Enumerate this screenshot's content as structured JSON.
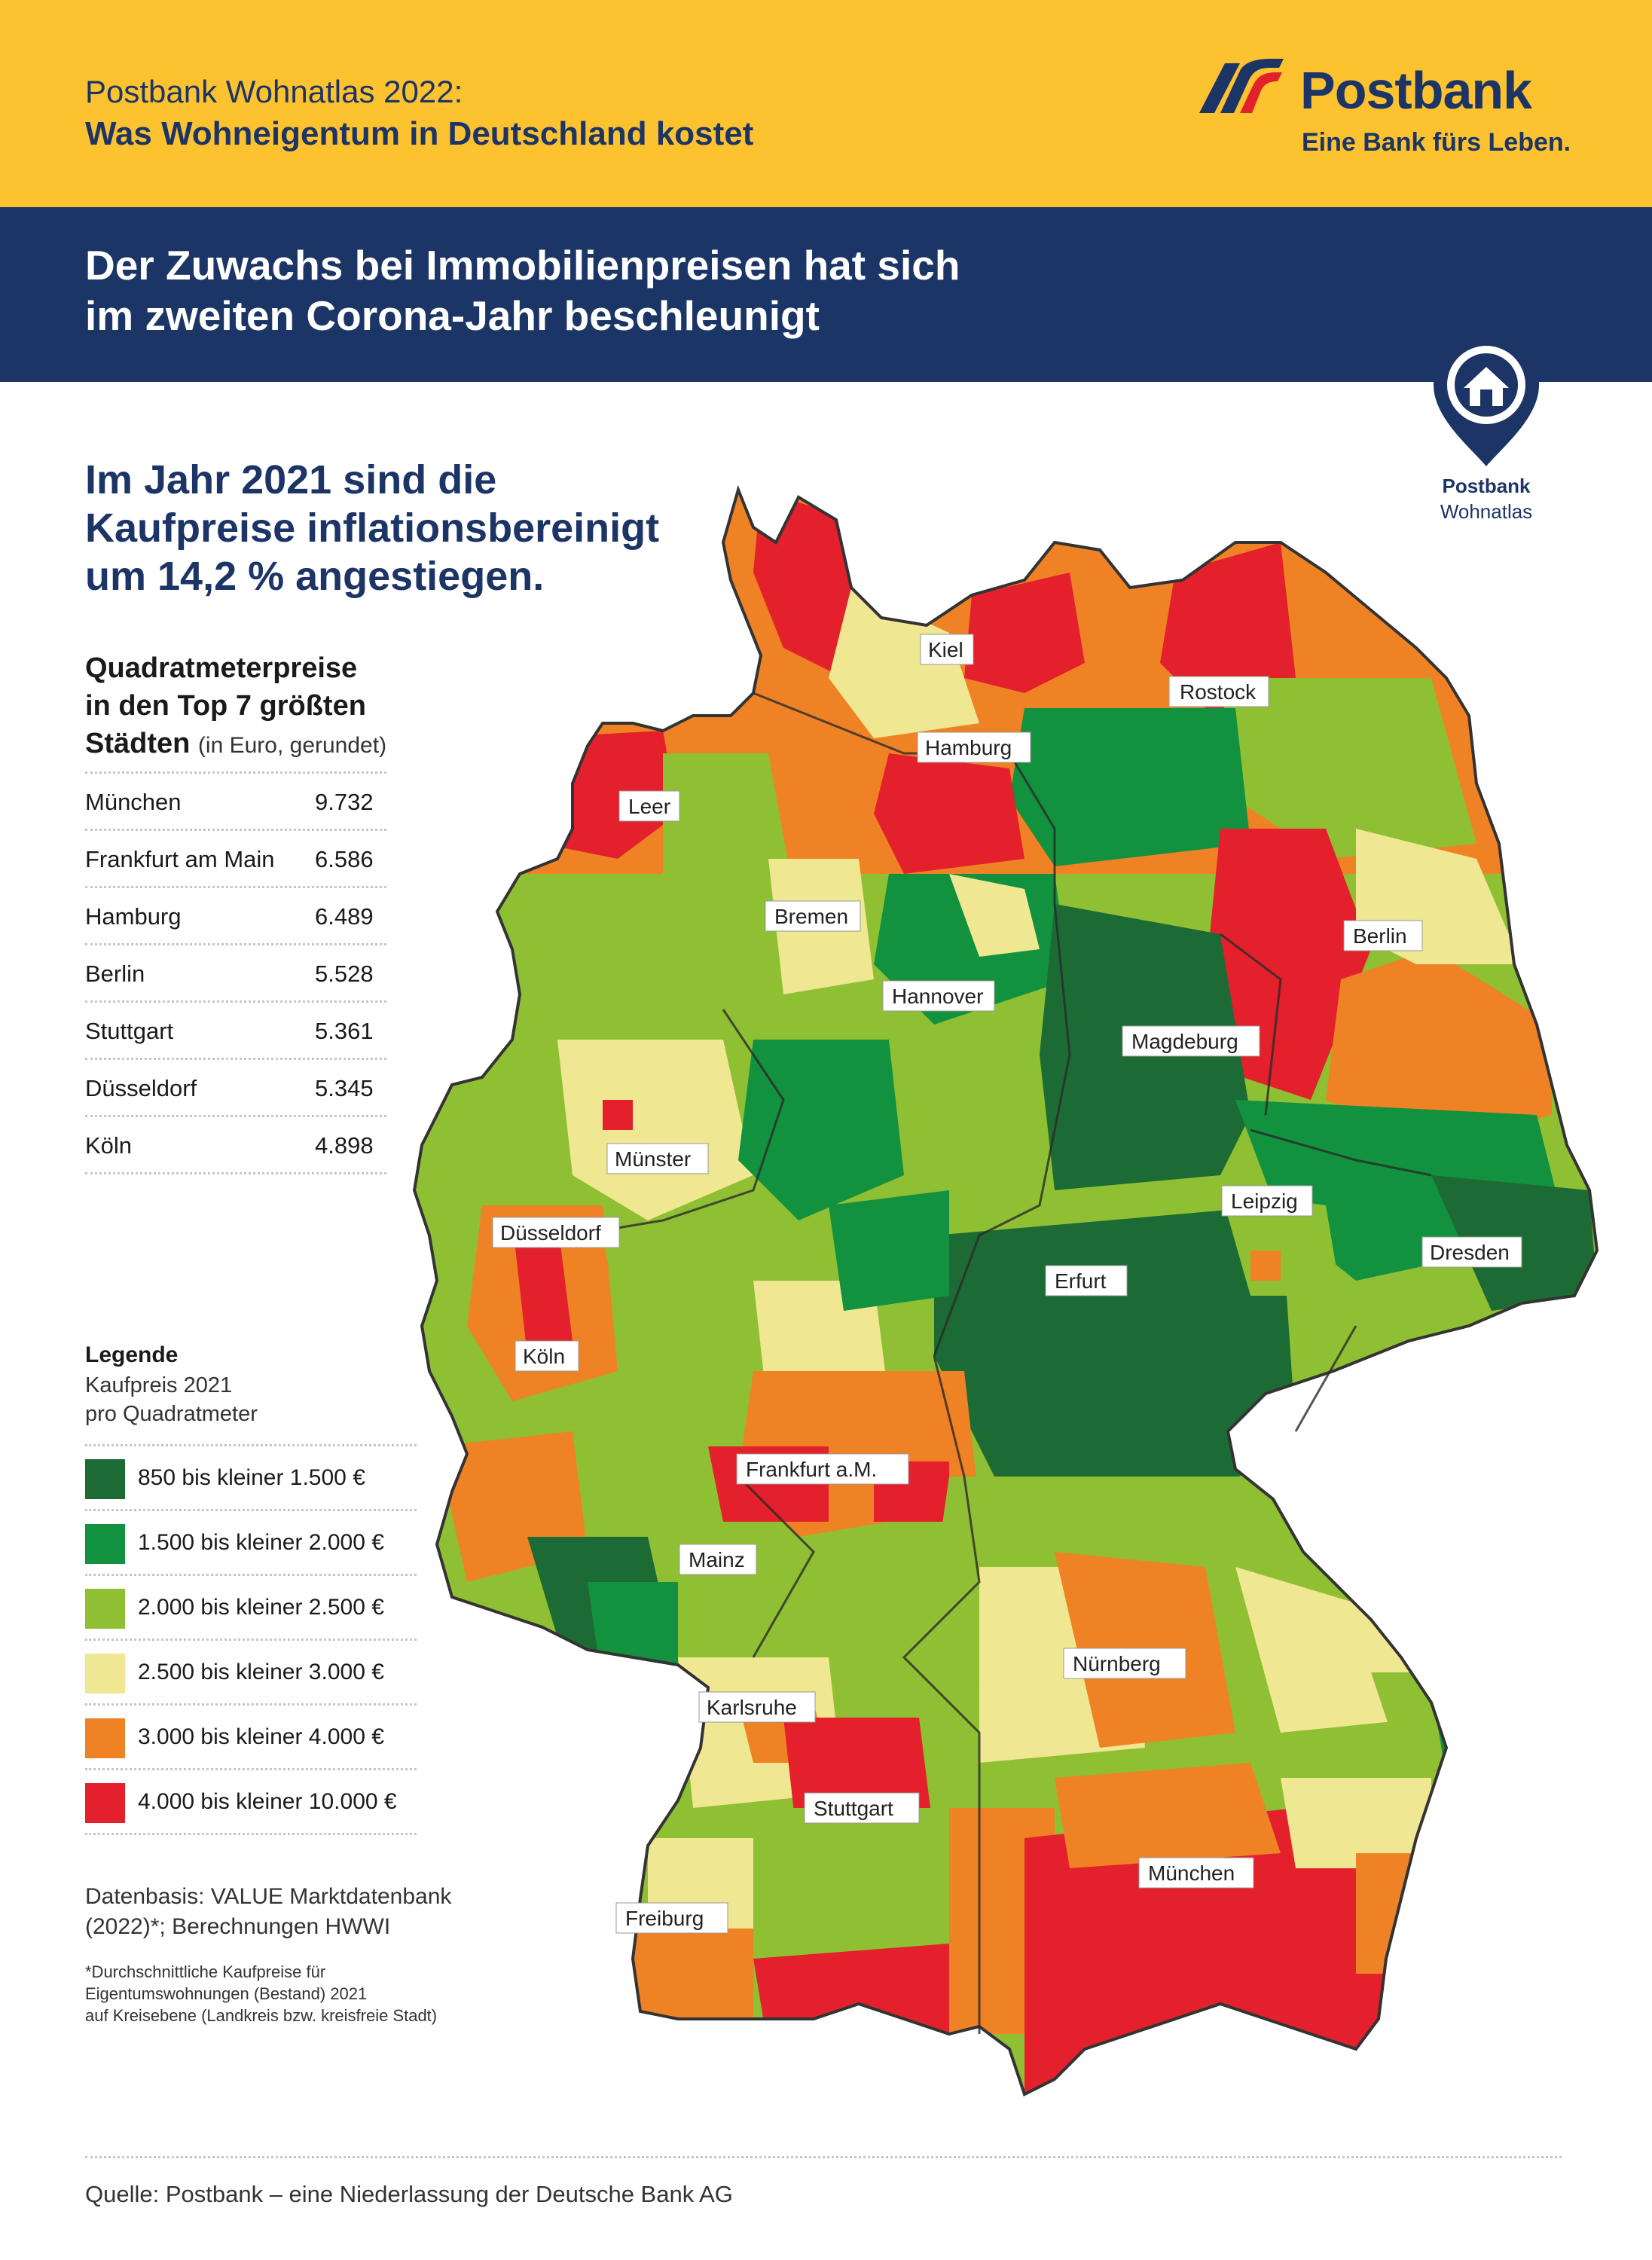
{
  "header": {
    "line1": "Postbank Wohnatlas 2022:",
    "line2": "Was Wohneigentum in Deutschland kostet",
    "logo_text": "Postbank",
    "logo_tagline": "Eine Bank fürs Leben."
  },
  "banner": {
    "line1": "Der Zuwachs bei Immobilienpreisen hat sich",
    "line2": "im zweiten Corona-Jahr beschleunigt"
  },
  "badge": {
    "icon": "home-pin-icon",
    "line1": "Postbank",
    "line2": "Wohnatlas"
  },
  "headline": {
    "line1": "Im Jahr 2021 sind die",
    "line2": "Kaufpreise inflationsbereinigt",
    "line3": "um 14,2 % angestiegen."
  },
  "table": {
    "title1": "Quadratmeterpreise",
    "title2": "in den Top 7 größten",
    "title3": "Städten",
    "title_note": "(in Euro, gerundet)",
    "rows": [
      {
        "city": "München",
        "value": "9.732"
      },
      {
        "city": "Frankfurt am Main",
        "value": "6.586"
      },
      {
        "city": "Hamburg",
        "value": "6.489"
      },
      {
        "city": "Berlin",
        "value": "5.528"
      },
      {
        "city": "Stuttgart",
        "value": "5.361"
      },
      {
        "city": "Düsseldorf",
        "value": "5.345"
      },
      {
        "city": "Köln",
        "value": "4.898"
      }
    ]
  },
  "legend": {
    "title": "Legende",
    "sub1": "Kaufpreis 2021",
    "sub2": "pro Quadratmeter",
    "items": [
      {
        "label": "850 bis kleiner 1.500 €",
        "color": "#1d6b34"
      },
      {
        "label": "1.500 bis kleiner 2.000 €",
        "color": "#12913f"
      },
      {
        "label": "2.000 bis kleiner 2.500 €",
        "color": "#8fbf33"
      },
      {
        "label": "2.500 bis kleiner 3.000 €",
        "color": "#efe791"
      },
      {
        "label": "3.000 bis kleiner 4.000 €",
        "color": "#ef8224"
      },
      {
        "label": "4.000 bis kleiner 10.000 €",
        "color": "#e3202b"
      }
    ]
  },
  "source_note": {
    "line1": "Datenbasis: VALUE Marktdatenbank",
    "line2": "(2022)*; Berechnungen HWWI",
    "fn1": "*Durchschnittliche Kaufpreise für",
    "fn2": "Eigentumswohnungen (Bestand) 2021",
    "fn3": "auf Kreisebene (Landkreis bzw. kreisfreie Stadt)"
  },
  "map_labels": {
    "kiel": "Kiel",
    "rostock": "Rostock",
    "hamburg": "Hamburg",
    "leer": "Leer",
    "bremen": "Bremen",
    "berlin": "Berlin",
    "hannover": "Hannover",
    "magdeburg": "Magdeburg",
    "muenster": "Münster",
    "leipzig": "Leipzig",
    "duesseldorf": "Düsseldorf",
    "dresden": "Dresden",
    "erfurt": "Erfurt",
    "koeln": "Köln",
    "frankfurt": "Frankfurt a.M.",
    "mainz": "Mainz",
    "nuernberg": "Nürnberg",
    "karlsruhe": "Karlsruhe",
    "stuttgart": "Stuttgart",
    "muenchen": "München",
    "freiburg": "Freiburg"
  },
  "footer": {
    "source": "Quelle: Postbank – eine Niederlassung der Deutsche Bank AG"
  }
}
